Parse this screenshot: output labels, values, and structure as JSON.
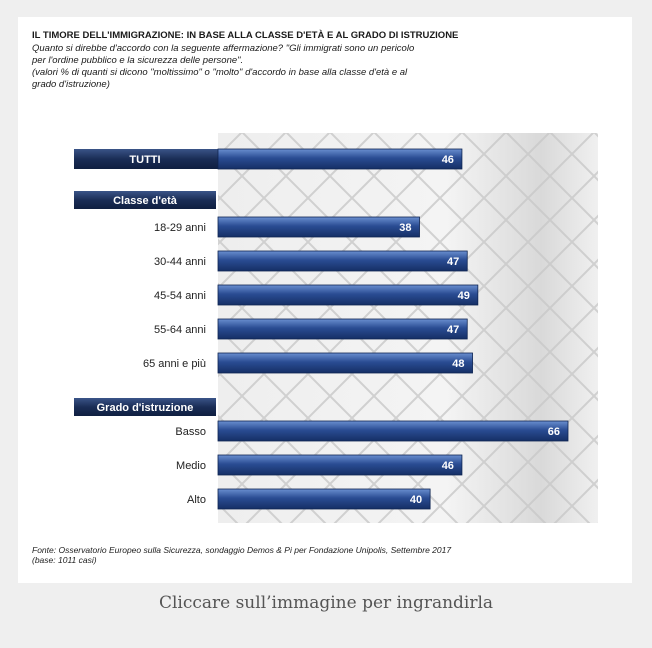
{
  "title": "IL TIMORE DELL'IMMIGRAZIONE: IN BASE ALLA CLASSE D'ETÀ E AL GRADO DI ISTRUZIONE",
  "subtitle_lines": [
    "Quanto si direbbe d'accordo con la seguente affermazione? \"Gli immigrati sono un pericolo",
    "per l'ordine pubblico e la sicurezza delle persone\".",
    "(valori % di quanti si dicono \"moltissimo\" o \"molto\" d'accordo in base alla classe d'età e al",
    "grado d'istruzione)"
  ],
  "source_lines": [
    "Fonte: Osservatorio Europeo sulla Sicurezza, sondaggio Demos & Pi per Fondazione Unipolis, Settembre 2017",
    "(base: 1011 casi)"
  ],
  "caption": "Cliccare sull’immagine per ingrandirla",
  "chart_data": {
    "type": "bar",
    "orientation": "horizontal",
    "groups": [
      {
        "header": "",
        "categories": [
          "TUTTI"
        ],
        "values": [
          46
        ],
        "header_style": true
      },
      {
        "header": "Classe d'età",
        "categories": [
          "18-29 anni",
          "30-44 anni",
          "45-54 anni",
          "55-64 anni",
          "65 anni e più"
        ],
        "values": [
          38,
          47,
          49,
          47,
          48
        ]
      },
      {
        "header": "Grado d'istruzione",
        "categories": [
          "Basso",
          "Medio",
          "Alto"
        ],
        "values": [
          66,
          46,
          40
        ]
      }
    ],
    "xlim": [
      0,
      70
    ],
    "grid": false,
    "legend": "none",
    "colors": {
      "bar_dark": "#1f3a75",
      "bar_light": "#5b7fc0",
      "header_bg": "#1c2f5a",
      "label_text": "#ffffff"
    }
  }
}
